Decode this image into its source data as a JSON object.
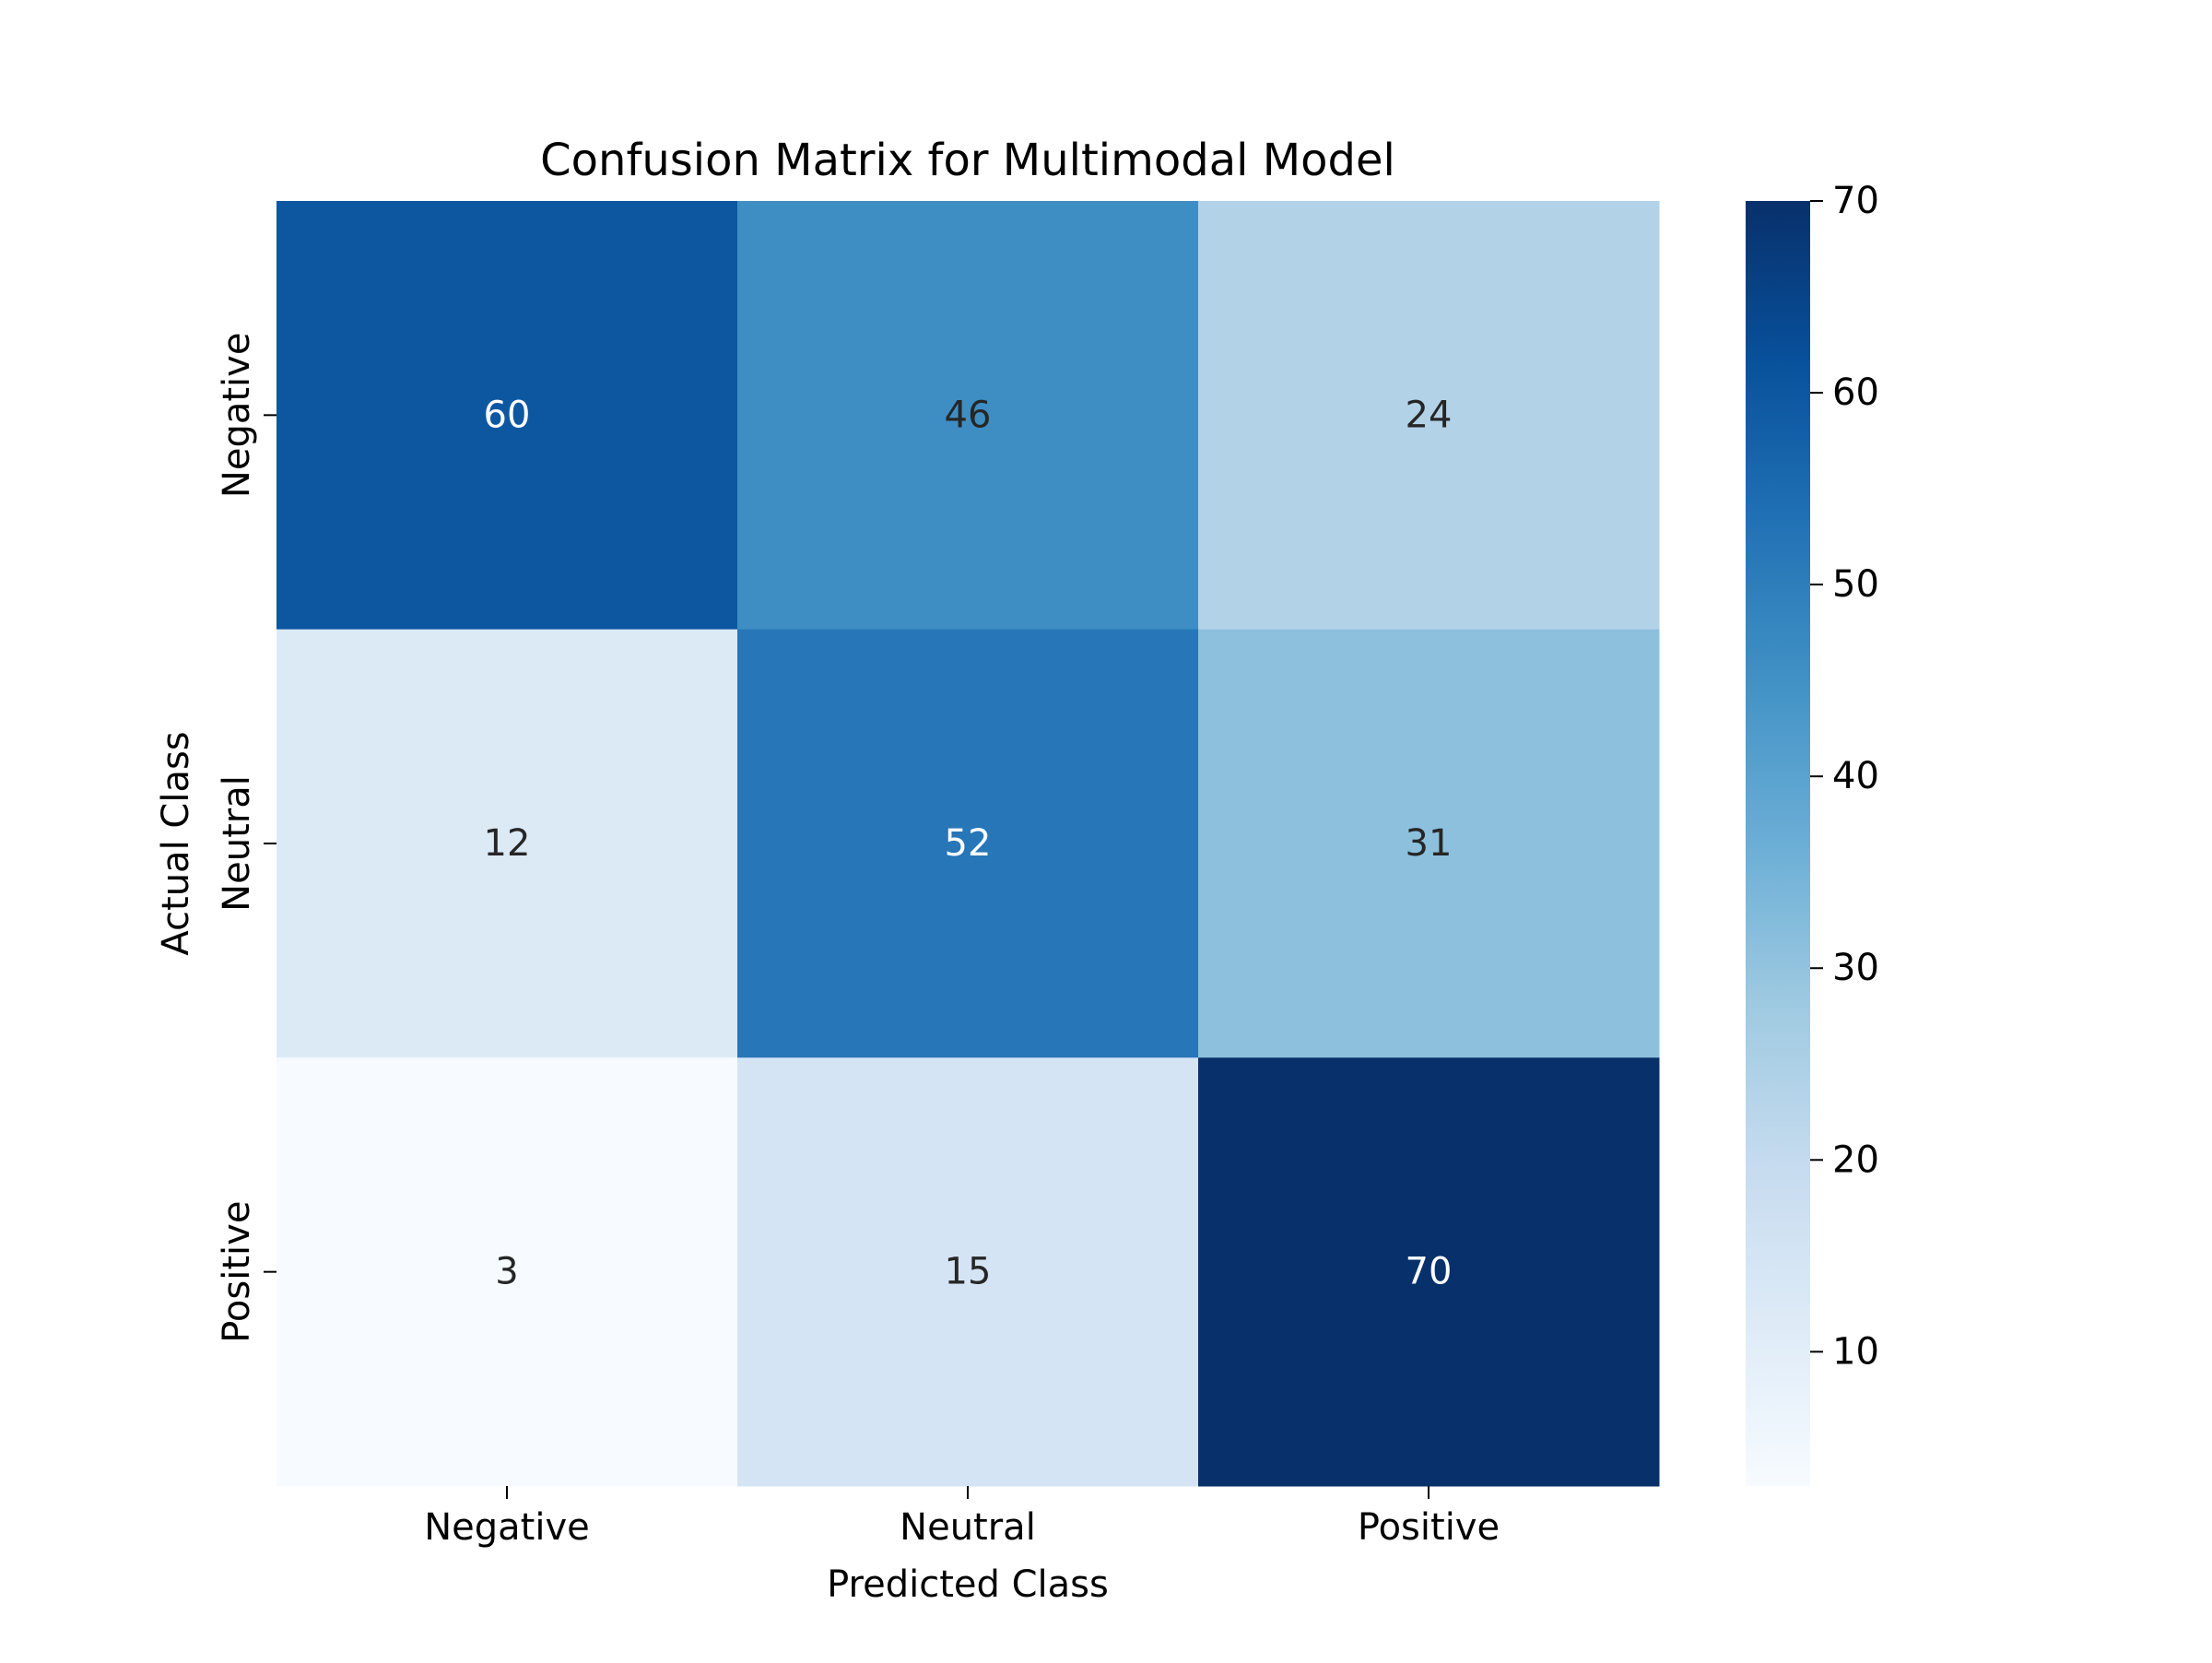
{
  "chart_data": {
    "type": "heatmap",
    "title": "Confusion Matrix for Multimodal Model",
    "xlabel": "Predicted Class",
    "ylabel": "Actual Class",
    "x_categories": [
      "Negative",
      "Neutral",
      "Positive"
    ],
    "y_categories": [
      "Negative",
      "Neutral",
      "Positive"
    ],
    "values": [
      [
        60,
        46,
        24
      ],
      [
        12,
        52,
        31
      ],
      [
        3,
        15,
        70
      ]
    ],
    "colormap": "Blues",
    "colorbar": {
      "min": 3,
      "max": 70,
      "ticks": [
        10,
        20,
        30,
        40,
        50,
        60,
        70
      ]
    },
    "annotations_shown": true,
    "grid": false
  }
}
